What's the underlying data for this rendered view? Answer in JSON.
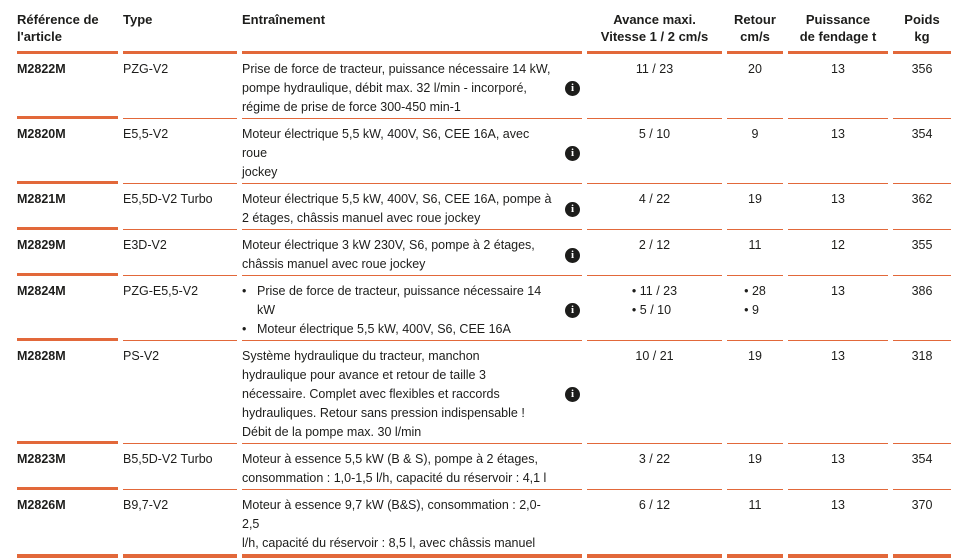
{
  "theme": {
    "accent_color": "#E2683A",
    "text_color": "#1D1D1B",
    "info_icon_bg": "#1D1D1B",
    "info_icon_fg": "#FFFFFF"
  },
  "table": {
    "bullet": "•",
    "info_icon_glyph": "i",
    "columns": [
      {
        "id": "ref",
        "label": "Référence de\nl'article"
      },
      {
        "id": "type",
        "label": "Type"
      },
      {
        "id": "drive",
        "label": "Entraînement"
      },
      {
        "id": "advance",
        "label": "Avance maxi.\nVitesse 1 / 2 cm/s"
      },
      {
        "id": "retour",
        "label": "Retour\ncm/s"
      },
      {
        "id": "power",
        "label": "Puissance\nde fendage t"
      },
      {
        "id": "weight",
        "label": "Poids\nkg"
      }
    ],
    "rows": [
      {
        "ref": "M2822M",
        "type": "PZG-V2",
        "drive_lines": [
          "Prise de force de tracteur, puissance nécessaire 14 kW,",
          "pompe hydraulique, débit max. 32 l/min - incorporé,",
          "régime de prise de force 300-450 min-1"
        ],
        "has_info": true,
        "advance": [
          "11 / 23"
        ],
        "retour": [
          "20"
        ],
        "power": "13",
        "weight": "356"
      },
      {
        "ref": "M2820M",
        "type": "E5,5-V2",
        "drive_lines": [
          "Moteur électrique 5,5 kW, 400V, S6, CEE 16A, avec roue",
          "jockey"
        ],
        "has_info": true,
        "advance": [
          "5 / 10"
        ],
        "retour": [
          "9"
        ],
        "power": "13",
        "weight": "354"
      },
      {
        "ref": "M2821M",
        "type": "E5,5D-V2 Turbo",
        "drive_lines": [
          "Moteur électrique 5,5 kW, 400V, S6, CEE 16A, pompe à",
          "2 étages, châssis manuel avec roue jockey"
        ],
        "has_info": true,
        "advance": [
          "4 / 22"
        ],
        "retour": [
          "19"
        ],
        "power": "13",
        "weight": "362"
      },
      {
        "ref": "M2829M",
        "type": "E3D-V2",
        "drive_lines": [
          "Moteur électrique 3 kW 230V, S6, pompe à 2 étages,",
          "châssis manuel avec roue jockey"
        ],
        "has_info": true,
        "advance": [
          "2 / 12"
        ],
        "retour": [
          "11"
        ],
        "power": "12",
        "weight": "355"
      },
      {
        "ref": "M2824M",
        "type": "PZG-E5,5-V2",
        "drive_bullets": [
          [
            "Prise de force de tracteur, puissance nécessaire 14",
            "kW"
          ],
          [
            "Moteur électrique 5,5 kW, 400V, S6, CEE 16A"
          ]
        ],
        "has_info": true,
        "advance": [
          "11 / 23",
          "5 / 10"
        ],
        "retour": [
          "28",
          "9"
        ],
        "power": "13",
        "weight": "386"
      },
      {
        "ref": "M2828M",
        "type": "PS-V2",
        "drive_lines": [
          "Système hydraulique du tracteur, manchon",
          "hydraulique pour avance et retour de taille 3",
          "nécessaire. Complet avec flexibles et raccords",
          "hydrauliques. Retour sans pression indispensable !",
          "Débit de la pompe max. 30 l/min"
        ],
        "has_info": true,
        "advance": [
          "10 / 21"
        ],
        "retour": [
          "19"
        ],
        "power": "13",
        "weight": "318"
      },
      {
        "ref": "M2823M",
        "type": "B5,5D-V2 Turbo",
        "drive_lines": [
          "Moteur à essence 5,5 kW (B & S), pompe à 2 étages,",
          "consommation : 1,0-1,5 l/h, capacité du réservoir : 4,1 l"
        ],
        "has_info": false,
        "advance": [
          "3 / 22"
        ],
        "retour": [
          "19"
        ],
        "power": "13",
        "weight": "354"
      },
      {
        "ref": "M2826M",
        "type": "B9,7-V2",
        "drive_lines": [
          "Moteur à essence 9,7 kW (B&S), consommation : 2,0-2,5",
          "l/h, capacité du réservoir : 8,5 l, avec châssis manuel"
        ],
        "has_info": false,
        "advance": [
          "6 / 12"
        ],
        "retour": [
          "11"
        ],
        "power": "13",
        "weight": "370"
      }
    ]
  }
}
